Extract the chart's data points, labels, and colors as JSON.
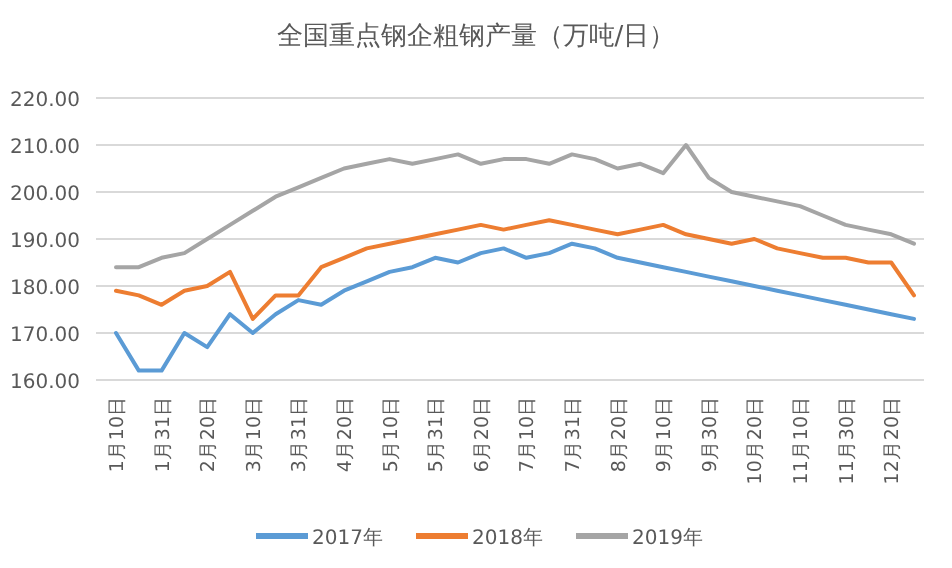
{
  "chart_data": {
    "type": "line",
    "title": "全国重点钢企粗钢产量（万吨/日）",
    "categories": [
      "1月10日",
      null,
      "1月31日",
      null,
      "2月20日",
      null,
      "3月10日",
      null,
      "3月31日",
      null,
      "4月20日",
      null,
      "5月10日",
      null,
      "5月31日",
      null,
      "6月20日",
      null,
      "7月10日",
      null,
      "7月31日",
      null,
      "8月20日",
      null,
      "9月10日",
      null,
      "9月30日",
      null,
      "10月20日",
      null,
      "11月10日",
      null,
      "11月30日",
      null,
      "12月20日",
      null
    ],
    "series": [
      {
        "name": "2017年",
        "color": "#5b9bd5",
        "values": [
          170,
          162,
          162,
          170,
          167,
          174,
          170,
          174,
          177,
          176,
          179,
          181,
          183,
          184,
          186,
          185,
          187,
          188,
          186,
          187,
          189,
          188,
          186,
          185,
          184,
          183,
          182,
          181,
          180,
          179,
          178,
          177,
          176,
          175,
          174,
          173
        ]
      },
      {
        "name": "2018年",
        "color": "#ed7d31",
        "values": [
          179,
          178,
          176,
          179,
          180,
          183,
          173,
          178,
          178,
          184,
          186,
          188,
          189,
          190,
          191,
          192,
          193,
          192,
          193,
          194,
          193,
          192,
          191,
          192,
          193,
          191,
          190,
          189,
          190,
          188,
          187,
          186,
          186,
          185,
          185,
          178
        ]
      },
      {
        "name": "2019年",
        "color": "#a5a5a5",
        "values": [
          184,
          184,
          186,
          187,
          190,
          193,
          196,
          199,
          201,
          203,
          205,
          206,
          207,
          206,
          207,
          208,
          206,
          207,
          207,
          206,
          208,
          207,
          205,
          206,
          204,
          210,
          203,
          200,
          199,
          198,
          197,
          195,
          193,
          192,
          191,
          189
        ]
      }
    ],
    "ylim": [
      160,
      220
    ],
    "yticks": [
      {
        "value": 160,
        "label": "160.00"
      },
      {
        "value": 170,
        "label": "170.00"
      },
      {
        "value": 180,
        "label": "180.00"
      },
      {
        "value": 190,
        "label": "190.00"
      },
      {
        "value": 200,
        "label": "200.00"
      },
      {
        "value": 210,
        "label": "210.00"
      },
      {
        "value": 220,
        "label": "220.00"
      }
    ],
    "grid": "y",
    "legend": "bottom",
    "marker": "none",
    "line_style": "solid"
  }
}
